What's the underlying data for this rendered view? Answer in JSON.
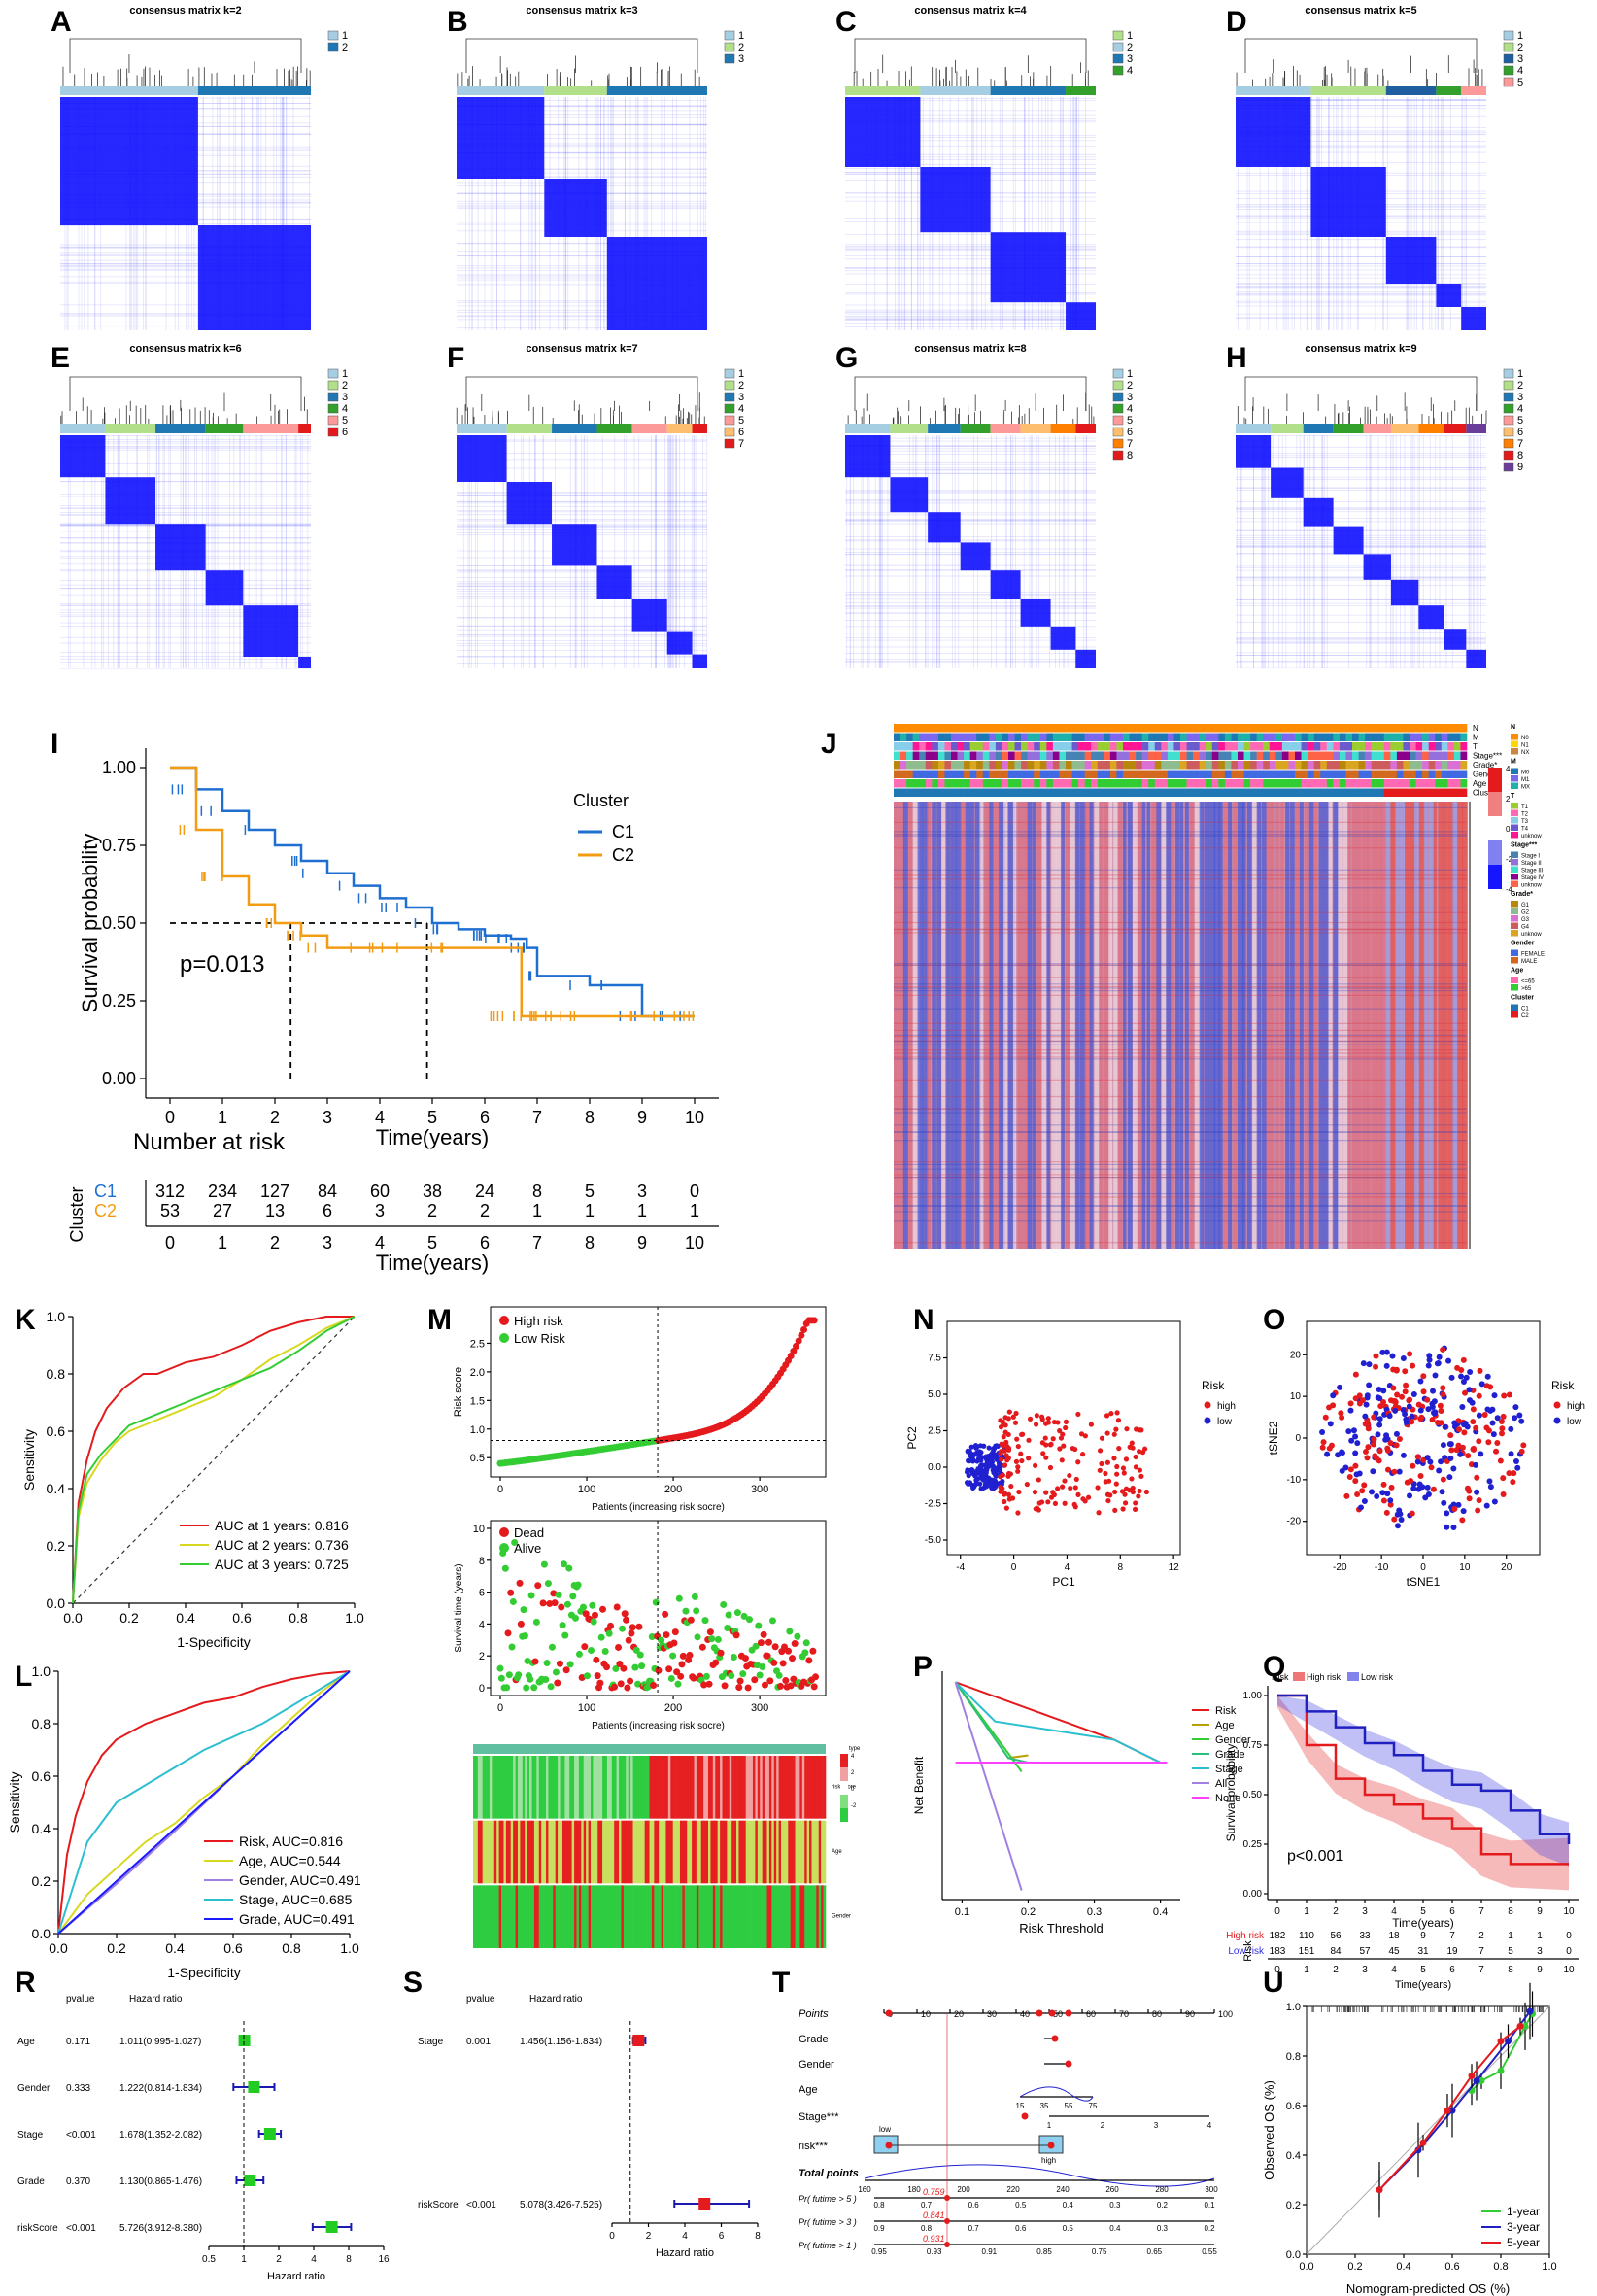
{
  "panels": {
    "A": "A",
    "B": "B",
    "C": "C",
    "D": "D",
    "E": "E",
    "F": "F",
    "G": "G",
    "H": "H",
    "I": "I",
    "J": "J",
    "K": "K",
    "L": "L",
    "M": "M",
    "N": "N",
    "O": "O",
    "P": "P",
    "Q": "Q",
    "R": "R",
    "S": "S",
    "T": "T",
    "U": "U"
  },
  "colors": {
    "blue_heat": "#1515ff",
    "c1": "#1f6fd0",
    "c2": "#f39c12",
    "red": "#e41a1c",
    "green": "#33cc33",
    "yellow": "#d8d820",
    "cyan": "#2bbfd0",
    "purple": "#a080e0",
    "magenta": "#ff40ff"
  },
  "chart_data": [
    {
      "type": "heatmap",
      "panel": "A",
      "title": "consensus matrix k=2",
      "legend": [
        "1",
        "2"
      ],
      "blocks": [
        0.55,
        0.45
      ]
    },
    {
      "type": "heatmap",
      "panel": "B",
      "title": "consensus matrix k=3",
      "legend": [
        "1",
        "2",
        "3"
      ],
      "blocks": [
        0.35,
        0.25,
        0.4
      ]
    },
    {
      "type": "heatmap",
      "panel": "C",
      "title": "consensus matrix k=4",
      "legend": [
        "1",
        "2",
        "3",
        "4"
      ],
      "blocks": [
        0.3,
        0.28,
        0.3,
        0.12
      ]
    },
    {
      "type": "heatmap",
      "panel": "D",
      "title": "consensus matrix k=5",
      "legend": [
        "1",
        "2",
        "3",
        "4",
        "5"
      ],
      "blocks": [
        0.3,
        0.3,
        0.2,
        0.1,
        0.1
      ]
    },
    {
      "type": "heatmap",
      "panel": "E",
      "title": "consensus matrix k=6",
      "legend": [
        "1",
        "2",
        "3",
        "4",
        "5",
        "6"
      ],
      "blocks": [
        0.18,
        0.2,
        0.2,
        0.15,
        0.22,
        0.05
      ]
    },
    {
      "type": "heatmap",
      "panel": "F",
      "title": "consensus matrix k=7",
      "legend": [
        "1",
        "2",
        "3",
        "4",
        "5",
        "6",
        "7"
      ],
      "blocks": [
        0.2,
        0.18,
        0.18,
        0.14,
        0.14,
        0.1,
        0.06
      ]
    },
    {
      "type": "heatmap",
      "panel": "G",
      "title": "consensus matrix k=8",
      "legend": [
        "1",
        "2",
        "3",
        "4",
        "5",
        "6",
        "7",
        "8"
      ],
      "blocks": [
        0.18,
        0.15,
        0.13,
        0.12,
        0.12,
        0.12,
        0.1,
        0.08
      ]
    },
    {
      "type": "heatmap",
      "panel": "H",
      "title": "consensus matrix k=9",
      "legend": [
        "1",
        "2",
        "3",
        "4",
        "5",
        "6",
        "7",
        "8",
        "9"
      ],
      "blocks": [
        0.14,
        0.13,
        0.12,
        0.12,
        0.11,
        0.11,
        0.1,
        0.09,
        0.08
      ]
    },
    {
      "type": "line",
      "panel": "I",
      "xlabel": "Time(years)",
      "ylabel": "Survival probability",
      "xlim": [
        0,
        10
      ],
      "ylim": [
        0,
        1
      ],
      "xticks": [
        "0",
        "1",
        "2",
        "3",
        "4",
        "5",
        "6",
        "7",
        "8",
        "9",
        "10"
      ],
      "yticks": [
        "0.00",
        "0.25",
        "0.50",
        "0.75",
        "1.00"
      ],
      "legend_title": "Cluster",
      "pvalue": "p=0.013",
      "series": [
        {
          "name": "C1",
          "x": [
            0,
            0.5,
            1,
            1.5,
            2,
            2.5,
            3,
            3.5,
            4,
            4.5,
            5,
            5.5,
            6,
            6.5,
            6.8,
            7,
            7.5,
            8,
            8.5,
            9,
            9.5,
            10
          ],
          "y": [
            1,
            0.93,
            0.86,
            0.8,
            0.75,
            0.7,
            0.66,
            0.62,
            0.58,
            0.55,
            0.5,
            0.48,
            0.46,
            0.45,
            0.42,
            0.33,
            0.33,
            0.3,
            0.3,
            0.2,
            0.2,
            0.2
          ]
        },
        {
          "name": "C2",
          "x": [
            0,
            0.5,
            1,
            1.5,
            2,
            2.5,
            3,
            4,
            5,
            6,
            6.7,
            7,
            8,
            9,
            10
          ],
          "y": [
            1,
            0.8,
            0.65,
            0.56,
            0.5,
            0.46,
            0.42,
            0.42,
            0.42,
            0.42,
            0.2,
            0.2,
            0.2,
            0.2,
            0.2
          ]
        }
      ],
      "risk_table": {
        "title": "Number at risk",
        "axis_title": "Cluster",
        "rows": [
          {
            "name": "C1",
            "values": [
              "312",
              "234",
              "127",
              "84",
              "60",
              "38",
              "24",
              "8",
              "5",
              "3",
              "0"
            ]
          },
          {
            "name": "C2",
            "values": [
              "53",
              "27",
              "13",
              "6",
              "3",
              "2",
              "2",
              "1",
              "1",
              "1",
              "1"
            ]
          }
        ],
        "xlabel": "Time(years)"
      }
    },
    {
      "type": "heatmap",
      "panel": "J",
      "annotation_rows": [
        "N",
        "M",
        "T",
        "Stage***",
        "Grade*",
        "Gender",
        "Age",
        "Cluster"
      ],
      "legend": {
        "N": [
          "N0",
          "N1",
          "NX"
        ],
        "M": [
          "M0",
          "M1",
          "MX"
        ],
        "T": [
          "T1",
          "T2",
          "T3",
          "T4",
          "unknow"
        ],
        "Stage***": [
          "Stage I",
          "Stage II",
          "Stage III",
          "Stage IV",
          "unknow"
        ],
        "Grade*": [
          "G1",
          "G2",
          "G3",
          "G4",
          "unknow"
        ],
        "Gender": [
          "FEMALE",
          "MALE"
        ],
        "Age": [
          "<=65",
          ">65"
        ],
        "Cluster": [
          "C1",
          "C2"
        ]
      },
      "scale": [
        "4",
        "2",
        "0",
        "-2",
        "-4"
      ]
    },
    {
      "type": "line",
      "panel": "K",
      "xlabel": "1-Specificity",
      "ylabel": "Sensitivity",
      "xlim": [
        0,
        1
      ],
      "ylim": [
        0,
        1
      ],
      "ticks": [
        "0.0",
        "0.2",
        "0.4",
        "0.6",
        "0.8",
        "1.0"
      ],
      "series": [
        {
          "name": "AUC at 1 years: 0.816",
          "x": [
            0,
            0.02,
            0.05,
            0.08,
            0.12,
            0.18,
            0.25,
            0.3,
            0.4,
            0.5,
            0.6,
            0.7,
            0.8,
            0.9,
            1
          ],
          "y": [
            0,
            0.35,
            0.5,
            0.6,
            0.68,
            0.75,
            0.8,
            0.8,
            0.84,
            0.86,
            0.9,
            0.95,
            0.98,
            1,
            1
          ]
        },
        {
          "name": "AUC at 2 years: 0.736",
          "x": [
            0,
            0.02,
            0.05,
            0.1,
            0.15,
            0.2,
            0.3,
            0.4,
            0.5,
            0.6,
            0.7,
            0.8,
            0.9,
            1
          ],
          "y": [
            0,
            0.3,
            0.42,
            0.5,
            0.56,
            0.6,
            0.64,
            0.68,
            0.72,
            0.78,
            0.85,
            0.9,
            0.96,
            1
          ]
        },
        {
          "name": "AUC at 3 years: 0.725",
          "x": [
            0,
            0.02,
            0.05,
            0.1,
            0.15,
            0.2,
            0.3,
            0.4,
            0.5,
            0.6,
            0.7,
            0.8,
            0.9,
            1
          ],
          "y": [
            0,
            0.32,
            0.45,
            0.52,
            0.57,
            0.62,
            0.66,
            0.7,
            0.74,
            0.78,
            0.82,
            0.88,
            0.95,
            1
          ]
        }
      ]
    },
    {
      "type": "line",
      "panel": "L",
      "xlabel": "1-Specificity",
      "ylabel": "Sensitivity",
      "xlim": [
        0,
        1
      ],
      "ylim": [
        0,
        1
      ],
      "ticks": [
        "0.0",
        "0.2",
        "0.4",
        "0.6",
        "0.8",
        "1.0"
      ],
      "series": [
        {
          "name": "Risk, AUC=0.816",
          "x": [
            0,
            0.03,
            0.06,
            0.1,
            0.15,
            0.2,
            0.3,
            0.4,
            0.5,
            0.6,
            0.7,
            0.8,
            0.9,
            1
          ],
          "y": [
            0,
            0.3,
            0.45,
            0.58,
            0.68,
            0.74,
            0.8,
            0.84,
            0.88,
            0.9,
            0.94,
            0.97,
            0.99,
            1
          ]
        },
        {
          "name": "Age, AUC=0.544",
          "x": [
            0,
            0.1,
            0.2,
            0.3,
            0.4,
            0.5,
            0.6,
            0.7,
            0.8,
            0.9,
            1
          ],
          "y": [
            0,
            0.15,
            0.25,
            0.35,
            0.42,
            0.52,
            0.6,
            0.72,
            0.82,
            0.92,
            1
          ]
        },
        {
          "name": "Gender, AUC=0.491",
          "x": [
            0,
            0.2,
            0.4,
            0.6,
            0.8,
            1
          ],
          "y": [
            0,
            0.19,
            0.39,
            0.6,
            0.8,
            1
          ]
        },
        {
          "name": "Stage, AUC=0.685",
          "x": [
            0,
            0.1,
            0.2,
            0.35,
            0.5,
            0.7,
            0.85,
            1
          ],
          "y": [
            0,
            0.35,
            0.5,
            0.6,
            0.7,
            0.8,
            0.9,
            1
          ]
        },
        {
          "name": "Grade, AUC=0.491",
          "x": [
            0,
            0.2,
            0.4,
            0.6,
            0.8,
            1
          ],
          "y": [
            0,
            0.2,
            0.4,
            0.6,
            0.8,
            1
          ]
        }
      ]
    },
    {
      "type": "scatter",
      "panel": "M",
      "subplots": [
        {
          "ylabel": "Risk score",
          "xlabel": "Patients (increasing risk socre)",
          "legend": [
            "High risk",
            "Low Risk"
          ],
          "yticks": [
            "0.5",
            "1.0",
            "1.5",
            "2.0",
            "2.5"
          ],
          "xticks": [
            "0",
            "100",
            "200",
            "300"
          ],
          "cutoff_x": 182,
          "cutoff_y": 0.8
        },
        {
          "ylabel": "Survival time (years)",
          "xlabel": "Patients (increasing risk socre)",
          "legend": [
            "Dead",
            "Alive"
          ],
          "yticks": [
            "0",
            "2",
            "4",
            "6",
            "8",
            "10"
          ],
          "xticks": [
            "0",
            "100",
            "200",
            "300"
          ]
        },
        {
          "rows": [
            "riskScore",
            "Age",
            "Gender"
          ],
          "legend_title": "type",
          "scale": [
            "4",
            "2",
            "0",
            "-2"
          ]
        }
      ]
    },
    {
      "type": "scatter",
      "panel": "N",
      "xlabel": "PC1",
      "ylabel": "PC2",
      "xticks": [
        "-4",
        "0",
        "4",
        "8",
        "12"
      ],
      "yticks": [
        "-5.0",
        "-2.5",
        "0.0",
        "2.5",
        "5.0",
        "7.5"
      ],
      "legend_title": "Risk",
      "legend": [
        "high",
        "low"
      ]
    },
    {
      "type": "scatter",
      "panel": "O",
      "xlabel": "tSNE1",
      "ylabel": "tSNE2",
      "xticks": [
        "-20",
        "-10",
        "0",
        "10",
        "20"
      ],
      "yticks": [
        "-20",
        "-10",
        "0",
        "10",
        "20"
      ],
      "legend_title": "Risk",
      "legend": [
        "high",
        "low"
      ]
    },
    {
      "type": "line",
      "panel": "P",
      "xlabel": "Risk Threshold",
      "ylabel": "Net Benefit",
      "xticks": [
        "0.1",
        "0.2",
        "0.3",
        "0.4"
      ],
      "legend": [
        "Risk",
        "Age",
        "Gender",
        "Grade",
        "Stage",
        "All",
        "None"
      ]
    },
    {
      "type": "line",
      "panel": "Q",
      "xlabel": "Time(years)",
      "ylabel": "Survival probability",
      "legend_title": "Risk",
      "legend": [
        "High risk",
        "Low risk"
      ],
      "pvalue": "p<0.001",
      "xticks": [
        "0",
        "1",
        "2",
        "3",
        "4",
        "5",
        "6",
        "7",
        "8",
        "9",
        "10"
      ],
      "yticks": [
        "0.00",
        "0.25",
        "0.50",
        "0.75",
        "1.00"
      ],
      "risk_table": {
        "axis_title": "Risk",
        "rows": [
          {
            "name": "High risk",
            "values": [
              "182",
              "110",
              "56",
              "33",
              "18",
              "9",
              "7",
              "2",
              "1",
              "1",
              "0"
            ]
          },
          {
            "name": "Low risk",
            "values": [
              "183",
              "151",
              "84",
              "57",
              "45",
              "31",
              "19",
              "7",
              "5",
              "3",
              "0"
            ]
          }
        ],
        "xlabel": "Time(years)"
      }
    },
    {
      "type": "table",
      "panel": "R",
      "columns": [
        "pvalue",
        "Hazard ratio"
      ],
      "rows": [
        {
          "name": "Age",
          "p": "0.171",
          "hr": "1.011(0.995-1.027)",
          "est": 1.011,
          "lo": 0.995,
          "hi": 1.027
        },
        {
          "name": "Gender",
          "p": "0.333",
          "hr": "1.222(0.814-1.834)",
          "est": 1.222,
          "lo": 0.814,
          "hi": 1.834
        },
        {
          "name": "Stage",
          "p": "<0.001",
          "hr": "1.678(1.352-2.082)",
          "est": 1.678,
          "lo": 1.352,
          "hi": 2.082
        },
        {
          "name": "Grade",
          "p": "0.370",
          "hr": "1.130(0.865-1.476)",
          "est": 1.13,
          "lo": 0.865,
          "hi": 1.476
        },
        {
          "name": "riskScore",
          "p": "<0.001",
          "hr": "5.726(3.912-8.380)",
          "est": 5.726,
          "lo": 3.912,
          "hi": 8.38
        }
      ],
      "xlabel": "Hazard ratio",
      "xticks": [
        "0.5",
        "1",
        "2",
        "4",
        "8",
        "16"
      ]
    },
    {
      "type": "table",
      "panel": "S",
      "columns": [
        "pvalue",
        "Hazard ratio"
      ],
      "rows": [
        {
          "name": "Stage",
          "p": "0.001",
          "hr": "1.456(1.156-1.834)",
          "est": 1.456,
          "lo": 1.156,
          "hi": 1.834
        },
        {
          "name": "riskScore",
          "p": "<0.001",
          "hr": "5.078(3.426-7.525)",
          "est": 5.078,
          "lo": 3.426,
          "hi": 7.525
        }
      ],
      "xlabel": "Hazard ratio",
      "xticks": [
        "0",
        "2",
        "4",
        "6",
        "8"
      ]
    },
    {
      "type": "other",
      "panel": "T",
      "rows": [
        "Points",
        "Grade",
        "Gender",
        "Age",
        "Stage***",
        "risk***",
        "Total points",
        "Pr( futime > 5 )",
        "Pr( futime > 3 )",
        "Pr( futime > 1 )"
      ],
      "points_ticks": [
        "0",
        "10",
        "20",
        "30",
        "40",
        "50",
        "60",
        "70",
        "80",
        "90",
        "100"
      ],
      "total_ticks": [
        "160",
        "180",
        "200",
        "220",
        "240",
        "260",
        "280",
        "300"
      ],
      "stage_ticks": [
        "1",
        "2",
        "3",
        "4"
      ],
      "age_ticks": [
        "15",
        "35",
        "55",
        "75"
      ],
      "risk_labels": [
        "low",
        "high"
      ],
      "pr5_ticks": [
        "0.8",
        "0.7",
        "0.6",
        "0.5",
        "0.4",
        "0.3",
        "0.2",
        "0.1"
      ],
      "pr3_ticks": [
        "0.9",
        "0.8",
        "0.7",
        "0.6",
        "0.5",
        "0.4",
        "0.3",
        "0.2"
      ],
      "pr1_ticks": [
        "0.95",
        "0.93",
        "0.91",
        "0.85",
        "0.75",
        "0.65",
        "0.55"
      ],
      "pred_values": [
        "0.759",
        "0.841",
        "0.931"
      ]
    },
    {
      "type": "line",
      "panel": "U",
      "xlabel": "Nomogram-predicted OS (%)",
      "ylabel": "Observed OS (%)",
      "ticks": [
        "0.0",
        "0.2",
        "0.4",
        "0.6",
        "0.8",
        "1.0"
      ],
      "series": [
        {
          "name": "1-year",
          "x": [
            0.68,
            0.72,
            0.8,
            0.9,
            0.93
          ],
          "y": [
            0.66,
            0.7,
            0.74,
            0.92,
            0.97
          ]
        },
        {
          "name": "3-year",
          "x": [
            0.3,
            0.46,
            0.6,
            0.7,
            0.83,
            0.92
          ],
          "y": [
            0.26,
            0.42,
            0.58,
            0.7,
            0.86,
            0.98
          ]
        },
        {
          "name": "5-year",
          "x": [
            0.3,
            0.48,
            0.58,
            0.68,
            0.8,
            0.88
          ],
          "y": [
            0.26,
            0.45,
            0.58,
            0.72,
            0.86,
            0.92
          ]
        }
      ]
    }
  ]
}
